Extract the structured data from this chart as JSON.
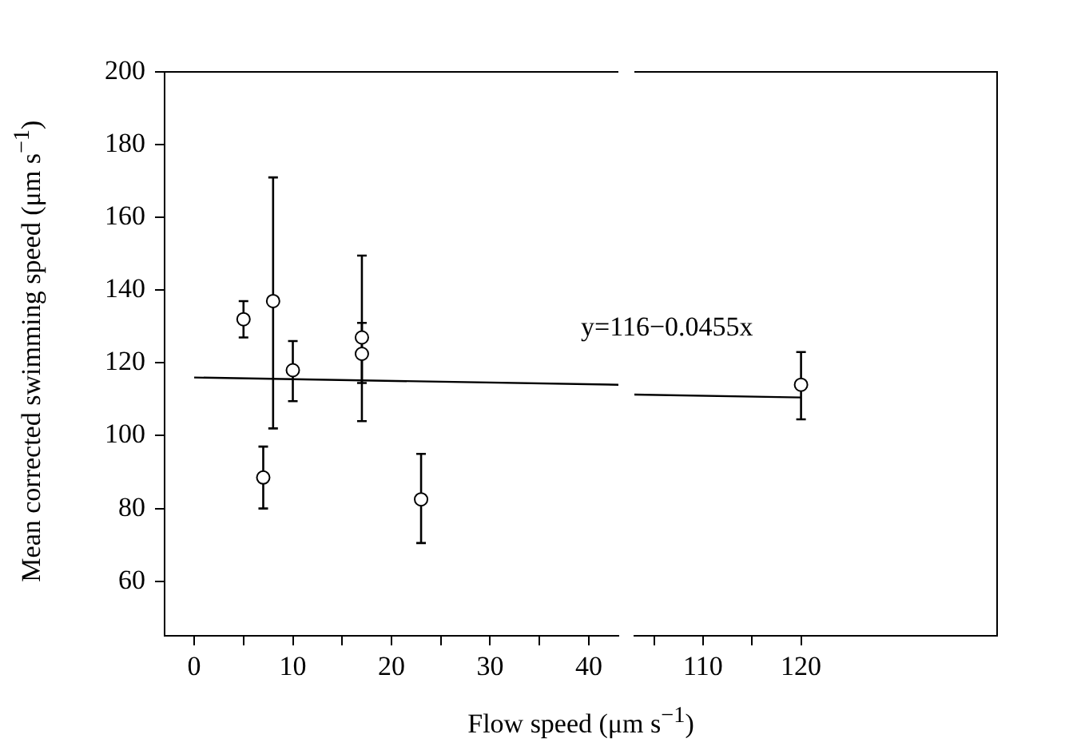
{
  "chart_data": [
    {
      "type": "scatter",
      "xlabel": "Flow speed (μm s$^{−1}$)",
      "ylabel": "Mean corrected swimming speed (μm s$^{−1}$)",
      "xlim": [
        -3,
        43
      ],
      "ylim": [
        45,
        200
      ],
      "xticks": [
        0,
        {
          "value": 5,
          "label": null
        },
        10,
        {
          "value": 15,
          "label": null
        },
        20,
        {
          "value": 25,
          "label": null
        },
        30,
        {
          "value": 35,
          "label": null
        },
        40
      ],
      "yticks": [
        60,
        80,
        100,
        120,
        140,
        160,
        180,
        200
      ],
      "grid": false,
      "annotations": [
        "y=116−0.0455x"
      ],
      "series": [
        {
          "color": "#000000",
          "marker": "circle",
          "x": [
            5,
            7,
            8,
            10,
            17,
            17,
            23
          ],
          "values": [
            132,
            88.5,
            137,
            118,
            127,
            122.5,
            82.5
          ],
          "errors": [
            [
              127,
              137
            ],
            [
              80,
              97
            ],
            [
              102,
              171
            ],
            [
              109.5,
              126
            ],
            [
              114.5,
              131
            ],
            [
              104,
              149.5
            ],
            [
              70.5,
              95
            ]
          ]
        },
        {
          "type": "line",
          "color": "#000000",
          "x": [
            0,
            43
          ],
          "values": [
            116,
            114
          ]
        }
      ]
    },
    {
      "type": "scatter",
      "xlim": [
        103,
        140
      ],
      "ylim": [
        45,
        200
      ],
      "tick_labels": "x",
      "xticks": [
        {
          "value": 105,
          "label": null
        },
        110,
        {
          "value": 115,
          "label": null
        },
        120
      ],
      "grid": false,
      "series": [
        {
          "color": "#000000",
          "marker": "circle",
          "x": [
            120
          ],
          "values": [
            114
          ],
          "errors": [
            [
              104.5,
              123
            ]
          ]
        },
        {
          "type": "line",
          "color": "#000000",
          "x": [
            103,
            120
          ],
          "values": [
            111.3,
            110.5
          ]
        }
      ]
    }
  ]
}
